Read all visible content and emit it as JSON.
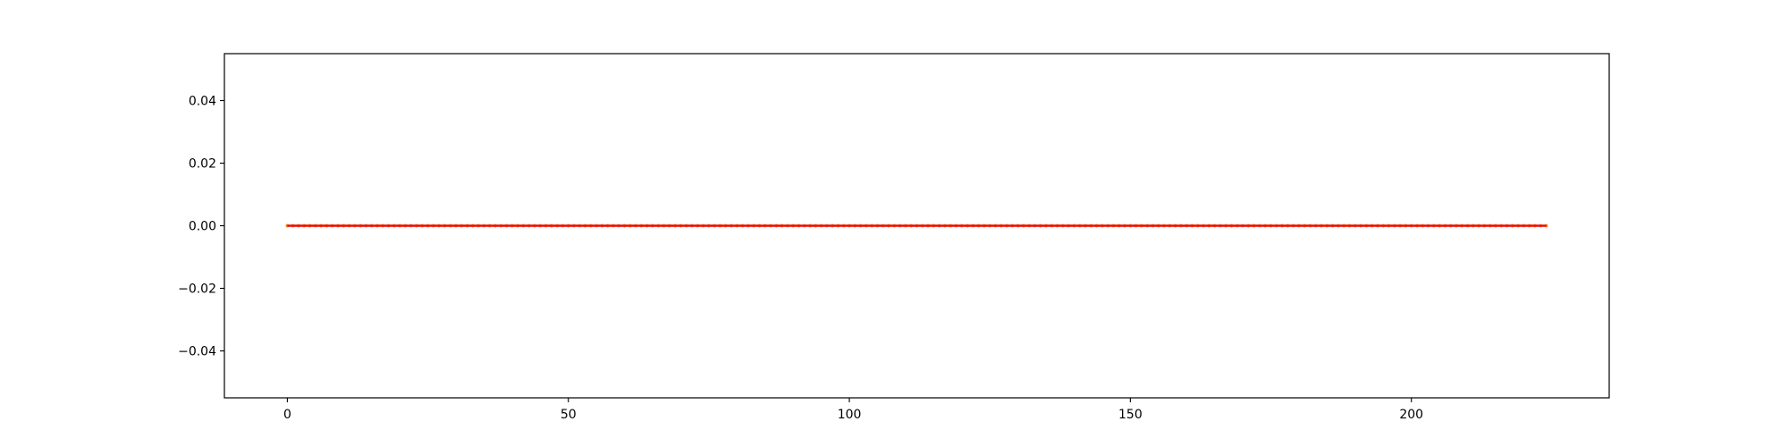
{
  "chart_data": {
    "type": "line",
    "title": "",
    "xlabel": "",
    "ylabel": "",
    "xlim": [
      -11.2,
      235.2
    ],
    "ylim": [
      -0.055,
      0.055
    ],
    "x_ticks": [
      0,
      50,
      100,
      150,
      200
    ],
    "x_tick_labels": [
      "0",
      "50",
      "100",
      "150",
      "200"
    ],
    "y_ticks": [
      -0.04,
      -0.02,
      0.0,
      0.02,
      0.04
    ],
    "y_tick_labels": [
      "−0.04",
      "−0.02",
      "0.00",
      "0.02",
      "0.04"
    ],
    "grid": false,
    "legend": "none",
    "series": [
      {
        "color": "#1f77b4",
        "x_start": 0,
        "x_end": 224,
        "x_step": 1,
        "y_constant": 0.0,
        "marker": "point"
      },
      {
        "color": "#ff7f0e",
        "x_start": 0,
        "x_end": 224,
        "x_step": 1,
        "y_constant": 0.0,
        "marker": "point"
      },
      {
        "color": "#ff0000",
        "x_start": 0,
        "x_end": 224,
        "x_step": 1,
        "y_constant": 0.0,
        "marker": "none"
      }
    ]
  }
}
